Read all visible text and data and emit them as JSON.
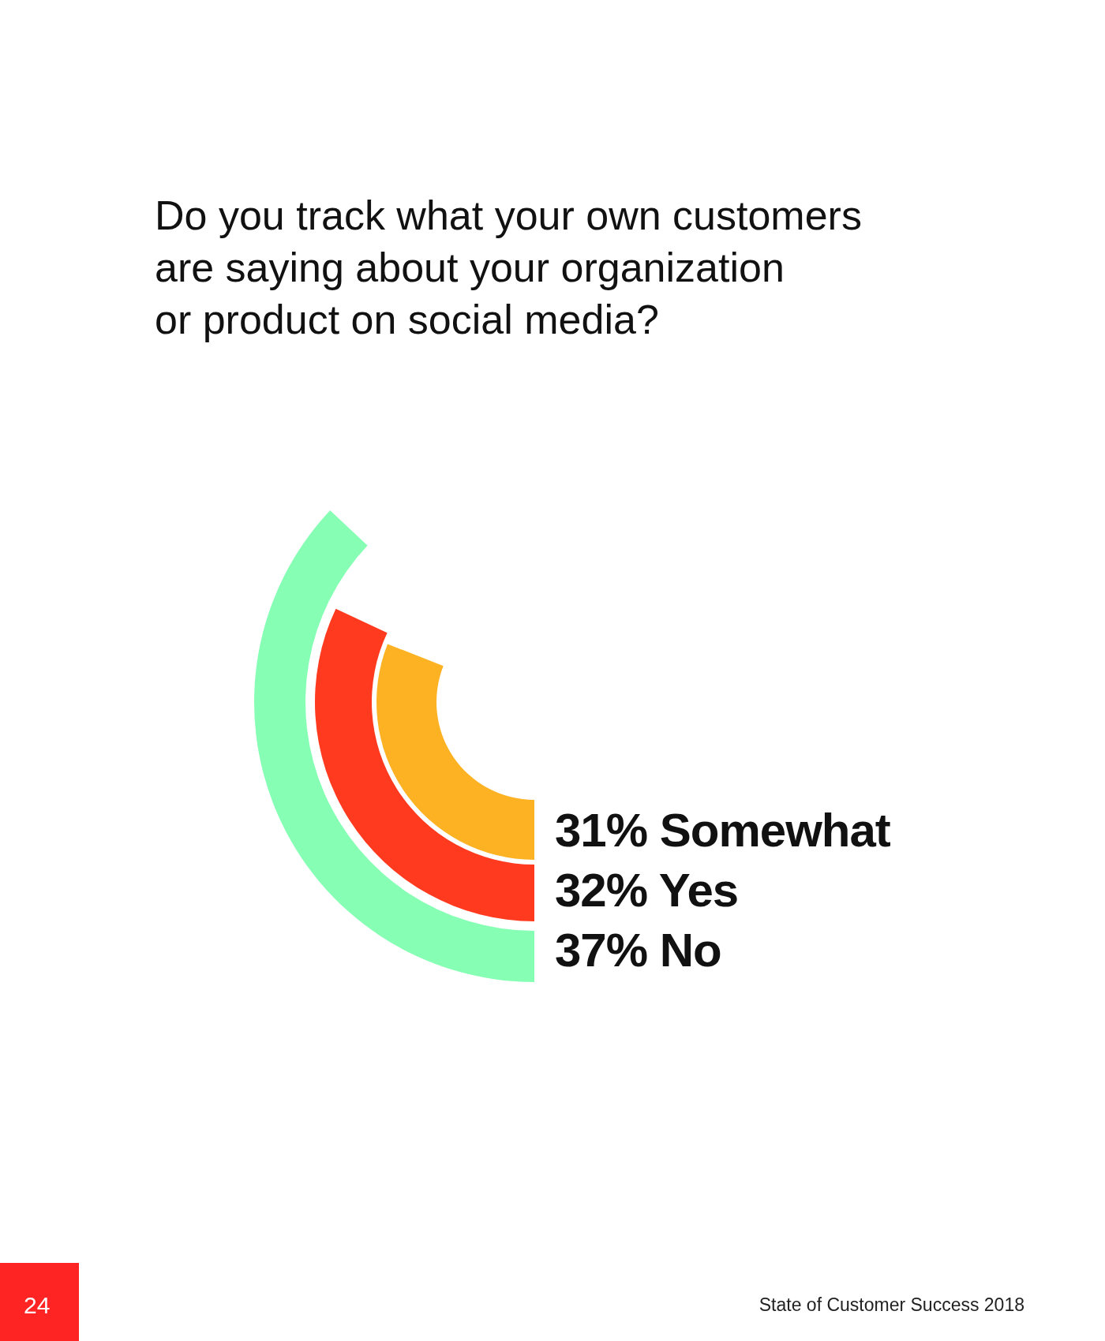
{
  "chart_data": {
    "type": "other",
    "title": "Do you track what your own customers are saying about your organization or product on social media?",
    "categories": [
      "Somewhat",
      "Yes",
      "No"
    ],
    "values": [
      31,
      32,
      37
    ],
    "value_labels": [
      "31%",
      "32%",
      "37%"
    ],
    "colors": [
      "#fdb223",
      "#ff3a1f",
      "#86ffb5"
    ],
    "annotations": [
      "24",
      "State of Customer Success 2018"
    ]
  }
}
